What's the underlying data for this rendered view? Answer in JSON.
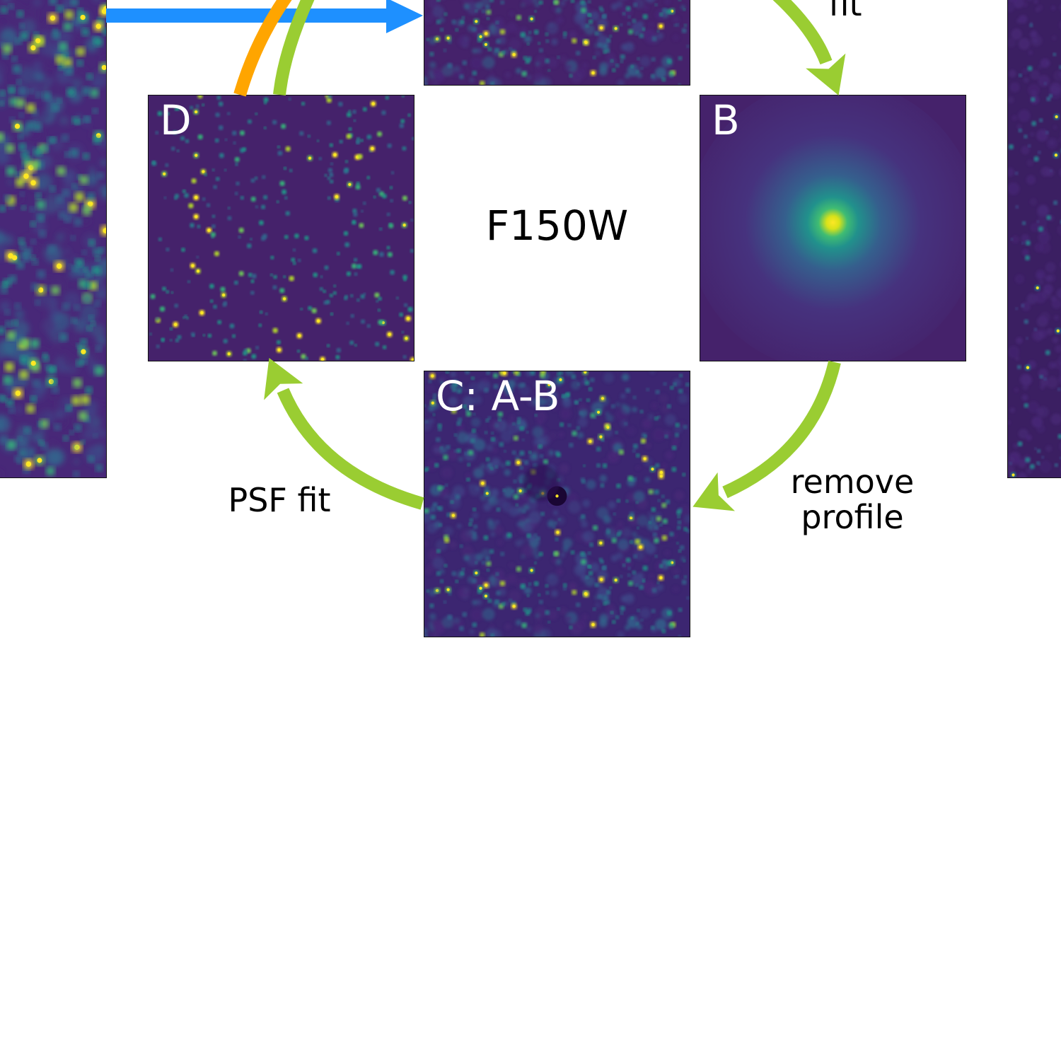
{
  "colors": {
    "panel_background": "#45226b",
    "panel_border": "#111111",
    "panel_label": "#ffffff",
    "caption_text": "#000000",
    "arrow_green": "#9acd32",
    "arrow_orange": "#ffa500",
    "arrow_blue": "#1e90ff",
    "colormap": [
      "#440154",
      "#482878",
      "#3e4a89",
      "#31688e",
      "#26828e",
      "#1f9e89",
      "#35b779",
      "#6ece58",
      "#b5de2b",
      "#fde725"
    ]
  },
  "filter_label": "F150W",
  "panels": {
    "left_strip": {
      "label": ""
    },
    "a": {
      "label": ""
    },
    "b": {
      "label": "B"
    },
    "c": {
      "label": "C: A-B"
    },
    "d": {
      "label": "D"
    },
    "right_strip": {
      "label": ""
    }
  },
  "captions": {
    "top_right": "fit",
    "right": "remove\nprofile",
    "left": "PSF fit"
  },
  "arrows": [
    "fit",
    "remove profile",
    "PSF fit",
    "D to A",
    "D to A (orange)",
    "left strip to A"
  ]
}
